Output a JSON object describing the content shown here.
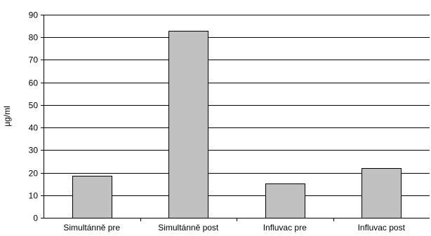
{
  "chart_data": {
    "type": "bar",
    "title": "",
    "xlabel": "",
    "ylabel": "µg/ml",
    "categories": [
      "Simultánně pre",
      "Simultánně post",
      "Influvac pre",
      "Influvac post"
    ],
    "values": [
      18.5,
      83,
      15.3,
      22
    ],
    "ylim": [
      0,
      90
    ],
    "yticks": [
      0,
      10,
      20,
      30,
      40,
      50,
      60,
      70,
      80,
      90
    ],
    "grid": true,
    "legend": "none",
    "bar_color": "#c0c0c0",
    "line_color": "#000000"
  }
}
